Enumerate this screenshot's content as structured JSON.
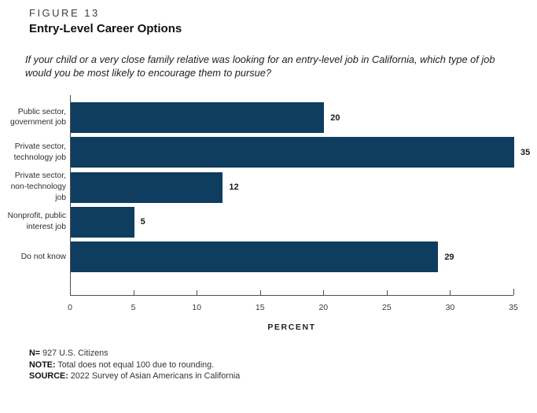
{
  "figure_label": "FIGURE 13",
  "title": "Entry-Level Career Options",
  "question": "If your child or a very close family relative was looking for an entry-level job in California, which type of job would you be most likely to encourage them to pursue?",
  "colors": {
    "bar": "#0e3d5f",
    "axis": "#4d4d4d",
    "value_label": "#1a1a1a"
  },
  "chart_data": {
    "type": "bar",
    "orientation": "horizontal",
    "categories": [
      "Public sector, government job",
      "Private sector, technology job",
      "Private sector, non-technology job",
      "Nonprofit, public interest job",
      "Do not know"
    ],
    "category_lines": [
      [
        "Public sector,",
        "government job"
      ],
      [
        "Private sector,",
        "technology job"
      ],
      [
        "Private sector,",
        "non-technology",
        "job"
      ],
      [
        "Nonprofit, public",
        "interest job"
      ],
      [
        "Do not know"
      ]
    ],
    "values": [
      20,
      35,
      12,
      5,
      29
    ],
    "value_labels_shown": true,
    "xlabel": "PERCENT",
    "x_ticks": [
      0,
      5,
      10,
      15,
      20,
      25,
      30,
      35
    ],
    "xlim": [
      0,
      35
    ],
    "grid": false,
    "legend": "none"
  },
  "notes": [
    {
      "prefix": "N=",
      "text": " 927 U.S. Citizens"
    },
    {
      "prefix": "NOTE:",
      "text": " Total does not equal 100 due to rounding."
    },
    {
      "prefix": "SOURCE:",
      "text": " 2022 Survey of Asian Americans in California"
    }
  ]
}
